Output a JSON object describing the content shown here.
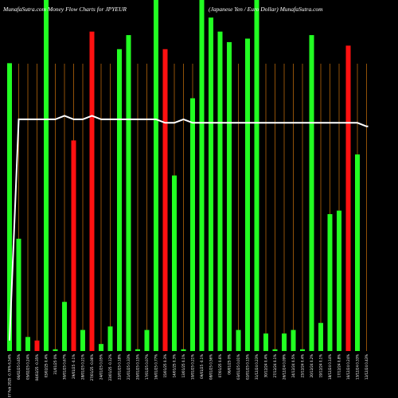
{
  "chart_data": {
    "type": "bar",
    "title_left": "MunafaSutra.com  Money Flow  Charts for JPYEUR",
    "title_right": "(Japanese  Yen  / Euro  Dollar) MunafaSutra.com",
    "colors": {
      "background": "#000000",
      "up_bar": "#22ff22",
      "down_bar": "#ff1111",
      "line": "#ffffff",
      "gridline": "#b4660a"
    },
    "ylim": [
      0,
      100
    ],
    "categories": [
      "Fri 07 Feb 2025 -0.76% 6,54%",
      "06/02/25 0.65%",
      "05/02/25 0.24%",
      "04/02/25 -0.35%",
      "03/02/25 0.4%",
      "31/01/25 0%",
      "30/01/25 0.67%",
      "29/01/25 -0.1%",
      "28/01/25 0.21%",
      "27/01/25 -0.06%",
      "24/01/25 0.05%",
      "23/01/25 -0.12%",
      "22/01/25 0.18%",
      "21/01/25 0.33%",
      "20/01/25 0.15%",
      "17/01/25 0.07%",
      "16/01/25 0.77%",
      "15/01/25 0.3%",
      "14/01/25 0.3%",
      "13/01/25 0.1%",
      "10/01/25 0.21%",
      "09/01/25 -0.1%",
      "08/01/25 0.56%",
      "07/01/25 0.6%",
      "06/01/25 0%",
      "03/01/25 0.01%",
      "02/01/25 0.15%",
      "31/12/24 0.23%",
      "30/12/24 0.4%",
      "27/12/24 0.1%",
      "26/12/24 0.09%",
      "24/12/24 0.5%",
      "23/12/24 0.4%",
      "20/12/24 0.2%",
      "19/12/24 0.1%",
      "18/12/24 0.14%",
      "17/12/24 0.8%",
      "16/12/24 0.24%",
      "13/12/24 0.33%",
      "12/12/24 0.43%"
    ],
    "values": [
      82,
      32,
      4,
      3,
      100,
      0.5,
      14,
      60,
      6,
      91,
      2,
      7,
      86,
      90,
      0.5,
      6,
      100,
      86,
      50,
      0.5,
      72,
      100,
      95,
      91,
      88,
      6,
      89,
      100,
      5,
      0.5,
      5,
      6,
      0.5,
      90,
      8,
      39,
      40,
      87,
      56,
      0
    ],
    "bar_colors": [
      "g",
      "g",
      "g",
      "r",
      "g",
      "g",
      "g",
      "r",
      "g",
      "r",
      "g",
      "g",
      "g",
      "g",
      "g",
      "g",
      "g",
      "r",
      "g",
      "g",
      "g",
      "g",
      "g",
      "g",
      "g",
      "g",
      "g",
      "g",
      "g",
      "g",
      "g",
      "g",
      "g",
      "g",
      "g",
      "g",
      "g",
      "r",
      "g",
      "g"
    ],
    "line_values": [
      3,
      66,
      66,
      66,
      66,
      66,
      66,
      66,
      66,
      66,
      66,
      66,
      66,
      66,
      66,
      66,
      66,
      66,
      66,
      66,
      66,
      66,
      66,
      66,
      66,
      66,
      66,
      66,
      66,
      66,
      66,
      66,
      66,
      66,
      66,
      66,
      66,
      66,
      66,
      66
    ],
    "line_points": [
      [
        0,
        3
      ],
      [
        1,
        66
      ],
      [
        5,
        66
      ],
      [
        6,
        67
      ],
      [
        7,
        66
      ],
      [
        8,
        66
      ],
      [
        9,
        67
      ],
      [
        10,
        66
      ],
      [
        13,
        66
      ],
      [
        16,
        66
      ],
      [
        17,
        65
      ],
      [
        18,
        65
      ],
      [
        19,
        66
      ],
      [
        20,
        65
      ],
      [
        21,
        65
      ],
      [
        38,
        65
      ],
      [
        39,
        64
      ],
      [
        40,
        64
      ]
    ]
  }
}
